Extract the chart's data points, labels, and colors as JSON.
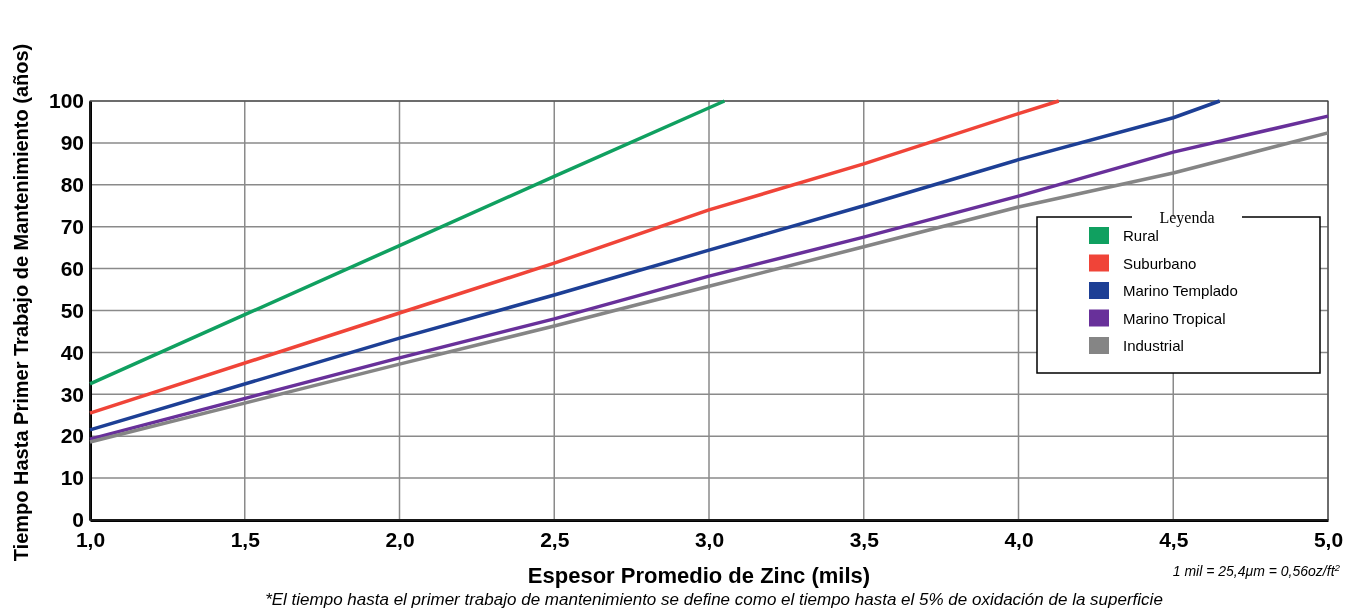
{
  "chart_data": {
    "type": "line",
    "xlabel": "Espesor Promedio de Zinc (mils)",
    "ylabel": "Tiempo Hasta Primer Trabajo de Mantenimiento (años)",
    "legend_title": "Leyenda",
    "annotations": [
      "1 mil = 25,4μm = 0,56oz/ft$^{2}$",
      "*El tiempo hasta el primer trabajo de mantenimiento se define como el tiempo hasta el 5% de oxidación de la superficie"
    ],
    "xlim": [
      1,
      5
    ],
    "ylim": [
      0,
      100
    ],
    "xticks": [
      {
        "value": 1,
        "label": "1,0"
      },
      {
        "value": 1.5,
        "label": "1,5"
      },
      {
        "value": 2,
        "label": "2,0"
      },
      {
        "value": 2.5,
        "label": "2,5"
      },
      {
        "value": 3,
        "label": "3,0"
      },
      {
        "value": 3.5,
        "label": "3,5"
      },
      {
        "value": 4,
        "label": "4,0"
      },
      {
        "value": 4.5,
        "label": "4,5"
      },
      {
        "value": 5,
        "label": "5,0"
      }
    ],
    "yticks": [
      0,
      10,
      20,
      30,
      40,
      50,
      60,
      70,
      80,
      90,
      100
    ],
    "grid": true,
    "legend": "right",
    "marker": "none",
    "line_style": "solid",
    "series": [
      {
        "name": "Rural",
        "color": "#10a060",
        "x": [
          1,
          1.5,
          2,
          2.5,
          3.05
        ],
        "values": [
          32.5,
          49,
          65.5,
          82,
          100
        ]
      },
      {
        "name": "Suburbano",
        "color": "#f04438",
        "x": [
          1,
          2,
          2.5,
          3,
          3.5,
          4,
          4.13
        ],
        "values": [
          25.5,
          49.4,
          61.3,
          74,
          85,
          97,
          100
        ]
      },
      {
        "name": "Marino Templado",
        "color": "#1d3f95",
        "x": [
          1,
          2,
          2.5,
          3,
          3.5,
          4,
          4.5,
          4.65
        ],
        "values": [
          21.5,
          43.4,
          53.7,
          64.4,
          75,
          86,
          96,
          100
        ]
      },
      {
        "name": "Marino Tropical",
        "color": "#68309a",
        "x": [
          1,
          2,
          2.5,
          3,
          3.5,
          4,
          4.5,
          5
        ],
        "values": [
          19.3,
          38.7,
          48,
          58.2,
          67.5,
          77.3,
          87.8,
          96.4
        ]
      },
      {
        "name": "Industrial",
        "color": "#858585",
        "x": [
          1,
          2,
          2.5,
          3,
          3.5,
          4,
          4.5,
          5
        ],
        "values": [
          18.6,
          37.2,
          46.3,
          55.8,
          65.2,
          74.7,
          82.8,
          92.4
        ]
      }
    ]
  }
}
